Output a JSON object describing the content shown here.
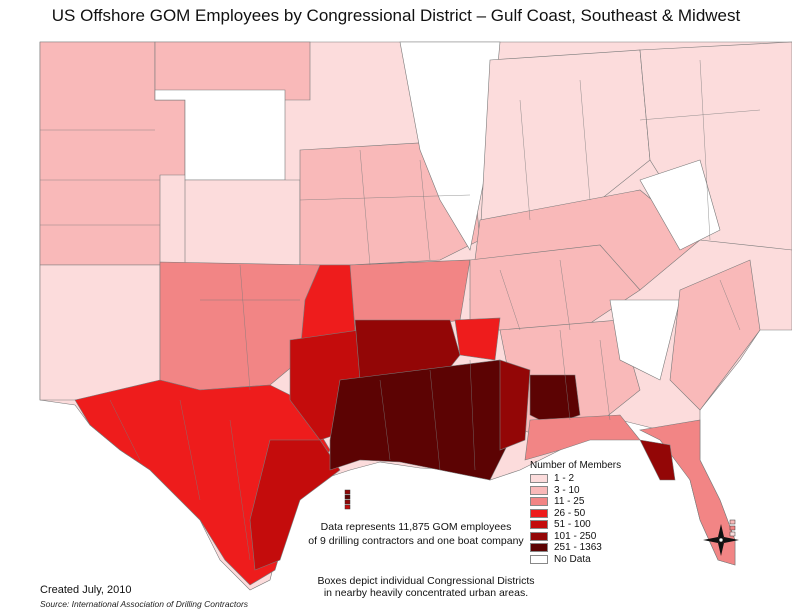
{
  "title": "US Offshore GOM Employees by Congressional District – Gulf Coast, Southeast & Midwest",
  "legend": {
    "title": "Number of Members",
    "items": [
      {
        "label": "1 - 2",
        "color": "#fcdcdc"
      },
      {
        "label": "3 - 10",
        "color": "#f9b9b9"
      },
      {
        "label": "11 - 25",
        "color": "#f28585"
      },
      {
        "label": "26 - 50",
        "color": "#ee1c1c"
      },
      {
        "label": "51 - 100",
        "color": "#c40c0c"
      },
      {
        "label": "101 - 250",
        "color": "#930606"
      },
      {
        "label": "251 - 1363",
        "color": "#5c0303"
      },
      {
        "label": "No Data",
        "color": "#ffffff"
      }
    ]
  },
  "note": {
    "line1": "Data represents 11,875 GOM employees",
    "line2": "of 9 drilling contractors and one boat company"
  },
  "boxes_note": {
    "line1": "Boxes depict individual Congressional Districts",
    "line2": "in nearby heavily concentrated urban areas."
  },
  "created": "Created July, 2010",
  "source": "Source: International Association of Drilling Contractors",
  "colors": {
    "water": "#ffffff",
    "border": "#7a7a7a"
  }
}
